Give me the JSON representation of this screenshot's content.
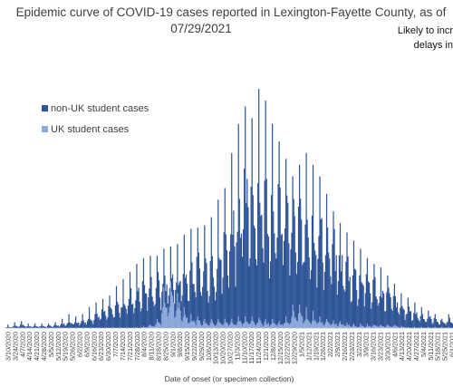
{
  "chart_data": {
    "type": "bar",
    "stacked": true,
    "title_line1": "Epidemic curve of COVID-19 cases reported in Lexington-Fayette County, as of",
    "title_line2": "07/29/2021",
    "note_line1": "Likely to incr",
    "note_line2": "delays in",
    "xlabel": "Date of onset (or specimen collection)",
    "ylabel": "",
    "legend_position": "left",
    "grid": false,
    "x_tick_labels": [
      "3/10/2020",
      "3/24/2020",
      "4/7/2020",
      "4/14/2020",
      "4/21/2020",
      "4/28/2020",
      "5/5/2020",
      "5/12/2020",
      "5/19/2020",
      "5/26/2020",
      "6/2/2020",
      "6/9/2020",
      "6/16/2020",
      "6/23/2020",
      "6/30/2020",
      "7/7/2020",
      "7/14/2020",
      "7/21/2020",
      "7/28/2020",
      "8/4/2020",
      "8/11/2020",
      "8/18/2020",
      "8/25/2020",
      "9/1/2020",
      "9/8/2020",
      "9/15/2020",
      "9/22/2020",
      "9/29/2020",
      "10/6/2020",
      "10/13/2020",
      "10/20/2020",
      "10/27/2020",
      "11/3/2020",
      "11/10/2020",
      "11/17/2020",
      "11/24/2020",
      "12/1/2020",
      "12/8/2020",
      "12/15/2020",
      "12/22/2020",
      "12/29/2020",
      "1/5/2021",
      "1/12/2021",
      "1/19/2021",
      "1/26/2021",
      "2/2/2021",
      "2/9/2021",
      "2/16/2021",
      "2/23/2021",
      "3/2/2021",
      "3/9/2021",
      "3/16/2021",
      "3/23/2021",
      "3/30/2021",
      "4/6/2021",
      "4/13/2021",
      "4/20/2021",
      "4/27/2021",
      "5/4/2021",
      "5/11/2021",
      "5/18/2021",
      "5/25/2021",
      "6/1/2021"
    ],
    "weekly_start_dates": [
      "3/10/2020",
      "3/17/2020",
      "3/24/2020",
      "3/31/2020",
      "4/7/2020",
      "4/14/2020",
      "4/21/2020",
      "4/28/2020",
      "5/5/2020",
      "5/12/2020",
      "5/19/2020",
      "5/26/2020",
      "6/2/2020",
      "6/9/2020",
      "6/16/2020",
      "6/23/2020",
      "6/30/2020",
      "7/7/2020",
      "7/14/2020",
      "7/21/2020",
      "7/28/2020",
      "8/4/2020",
      "8/11/2020",
      "8/18/2020",
      "8/25/2020",
      "9/1/2020",
      "9/8/2020",
      "9/15/2020",
      "9/22/2020",
      "9/29/2020",
      "10/6/2020",
      "10/13/2020",
      "10/20/2020",
      "10/27/2020",
      "11/3/2020",
      "11/10/2020",
      "11/17/2020",
      "11/24/2020",
      "12/1/2020",
      "12/8/2020",
      "12/15/2020",
      "12/22/2020",
      "12/29/2020",
      "1/5/2021",
      "1/12/2021",
      "1/19/2021",
      "1/26/2021",
      "2/2/2021",
      "2/9/2021",
      "2/16/2021",
      "2/23/2021",
      "3/2/2021",
      "3/9/2021",
      "3/16/2021",
      "3/23/2021",
      "3/30/2021",
      "4/6/2021",
      "4/13/2021",
      "4/20/2021",
      "4/27/2021",
      "5/4/2021",
      "5/11/2021",
      "5/18/2021",
      "5/25/2021",
      "6/1/2021",
      "6/8/2021"
    ],
    "series": [
      {
        "name": "non-UK student cases",
        "color": "#2f5597",
        "weekly_peak_values": [
          3,
          5,
          6,
          4,
          4,
          4,
          4,
          5,
          8,
          12,
          10,
          12,
          18,
          22,
          25,
          28,
          36,
          42,
          48,
          55,
          60,
          62,
          62,
          68,
          70,
          72,
          80,
          85,
          86,
          88,
          95,
          110,
          120,
          150,
          175,
          190,
          180,
          205,
          195,
          175,
          160,
          145,
          130,
          140,
          150,
          140,
          130,
          115,
          100,
          90,
          82,
          75,
          68,
          60,
          55,
          52,
          45,
          38,
          30,
          26,
          22,
          18,
          15,
          12,
          8,
          12
        ],
        "weekly_typical_values": [
          1,
          2,
          3,
          2,
          2,
          2,
          2,
          3,
          4,
          6,
          6,
          7,
          10,
          13,
          15,
          17,
          22,
          26,
          30,
          34,
          38,
          40,
          42,
          46,
          48,
          50,
          52,
          56,
          58,
          60,
          64,
          70,
          80,
          105,
          120,
          125,
          130,
          130,
          125,
          120,
          115,
          110,
          100,
          100,
          105,
          98,
          92,
          82,
          72,
          64,
          58,
          52,
          48,
          44,
          40,
          36,
          32,
          26,
          20,
          17,
          14,
          12,
          10,
          8,
          6,
          8
        ]
      },
      {
        "name": "UK student cases",
        "color": "#8faadc",
        "weekly_peak_values": [
          0,
          0,
          0,
          0,
          0,
          0,
          0,
          0,
          0,
          0,
          0,
          0,
          0,
          0,
          0,
          0,
          0,
          0,
          0,
          1,
          2,
          3,
          8,
          35,
          40,
          30,
          18,
          12,
          10,
          8,
          8,
          8,
          8,
          8,
          10,
          10,
          10,
          9,
          8,
          8,
          6,
          10,
          20,
          20,
          18,
          15,
          10,
          8,
          7,
          6,
          5,
          4,
          4,
          4,
          3,
          3,
          3,
          3,
          2,
          1,
          1,
          1,
          1,
          1,
          1,
          1
        ],
        "weekly_typical_values": [
          0,
          0,
          0,
          0,
          0,
          0,
          0,
          0,
          0,
          0,
          0,
          0,
          0,
          0,
          0,
          0,
          0,
          0,
          0,
          0,
          1,
          2,
          5,
          22,
          26,
          20,
          12,
          8,
          6,
          5,
          5,
          5,
          5,
          5,
          6,
          6,
          6,
          6,
          5,
          5,
          4,
          6,
          12,
          12,
          10,
          8,
          6,
          5,
          4,
          4,
          3,
          2,
          2,
          2,
          2,
          2,
          2,
          2,
          1,
          0,
          0,
          0,
          0,
          0,
          0,
          0
        ]
      }
    ]
  }
}
